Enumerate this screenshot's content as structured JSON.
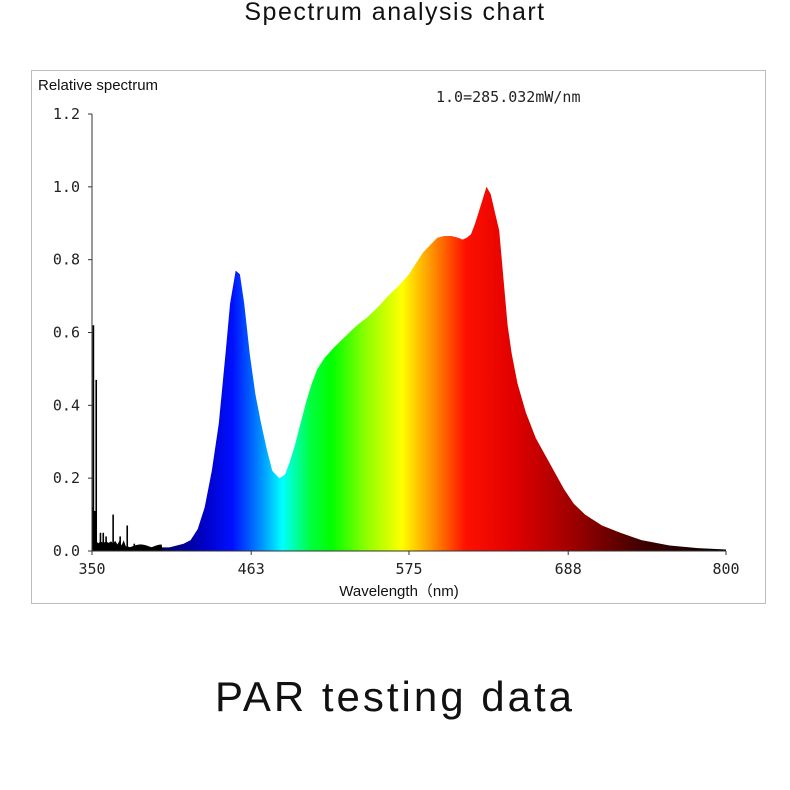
{
  "page": {
    "title": "Spectrum analysis chart",
    "footer": "PAR testing data"
  },
  "chart_data": {
    "type": "area",
    "title": "Spectrum analysis chart",
    "ylabel": "Relative spectrum",
    "xlabel": "Wavelength（nm)",
    "annotation": "1.0=285.032mW/nm",
    "xlim": [
      350,
      800
    ],
    "ylim": [
      0,
      1.2
    ],
    "xticks": [
      "350",
      "463",
      "575",
      "688",
      "800"
    ],
    "yticks": [
      "0.0",
      "0.2",
      "0.4",
      "0.6",
      "0.8",
      "1.0",
      "1.2"
    ],
    "grid": false,
    "x": [
      395,
      405,
      415,
      420,
      425,
      430,
      435,
      440,
      445,
      448,
      452,
      455,
      458,
      462,
      466,
      470,
      474,
      478,
      483,
      487,
      490,
      494,
      498,
      502,
      506,
      510,
      515,
      522,
      530,
      538,
      545,
      553,
      560,
      568,
      575,
      580,
      585,
      590,
      595,
      600,
      605,
      610,
      613,
      616,
      619,
      622,
      626,
      630,
      633,
      636,
      639,
      642,
      645,
      648,
      652,
      658,
      665,
      675,
      685,
      692,
      700,
      712,
      725,
      740,
      760,
      780,
      800
    ],
    "y": [
      0.01,
      0.01,
      0.02,
      0.03,
      0.06,
      0.12,
      0.22,
      0.35,
      0.55,
      0.68,
      0.77,
      0.76,
      0.68,
      0.54,
      0.43,
      0.35,
      0.28,
      0.22,
      0.2,
      0.21,
      0.24,
      0.29,
      0.35,
      0.41,
      0.46,
      0.5,
      0.53,
      0.56,
      0.59,
      0.62,
      0.64,
      0.67,
      0.7,
      0.73,
      0.76,
      0.79,
      0.82,
      0.84,
      0.86,
      0.865,
      0.865,
      0.86,
      0.855,
      0.86,
      0.87,
      0.9,
      0.95,
      1.0,
      0.98,
      0.93,
      0.88,
      0.75,
      0.62,
      0.54,
      0.46,
      0.38,
      0.31,
      0.24,
      0.17,
      0.13,
      0.1,
      0.07,
      0.05,
      0.03,
      0.015,
      0.008,
      0.004
    ],
    "noise_spikes": {
      "x": [
        350.5,
        351,
        352,
        353,
        356,
        358,
        360,
        365,
        370,
        375,
        380,
        385
      ],
      "y": [
        0.12,
        0.62,
        0.11,
        0.47,
        0.05,
        0.05,
        0.04,
        0.1,
        0.04,
        0.07,
        0.02,
        0.015
      ]
    },
    "gradient_colors": [
      {
        "nm": 400,
        "color": "#000060"
      },
      {
        "nm": 430,
        "color": "#0000c8"
      },
      {
        "nm": 450,
        "color": "#0010ff"
      },
      {
        "nm": 470,
        "color": "#0090ff"
      },
      {
        "nm": 485,
        "color": "#00ffff"
      },
      {
        "nm": 505,
        "color": "#00ff40"
      },
      {
        "nm": 520,
        "color": "#00ff00"
      },
      {
        "nm": 545,
        "color": "#90ff00"
      },
      {
        "nm": 570,
        "color": "#ffff00"
      },
      {
        "nm": 590,
        "color": "#ff9900"
      },
      {
        "nm": 615,
        "color": "#ff1000"
      },
      {
        "nm": 650,
        "color": "#e00000"
      },
      {
        "nm": 690,
        "color": "#a00000"
      },
      {
        "nm": 740,
        "color": "#400000"
      },
      {
        "nm": 800,
        "color": "#000000"
      }
    ]
  }
}
